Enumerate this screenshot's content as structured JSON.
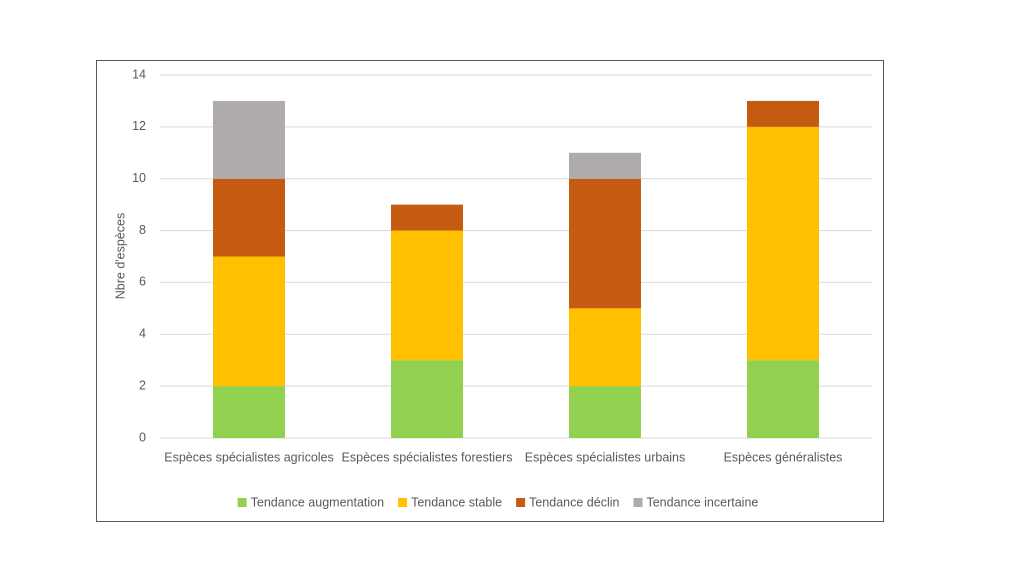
{
  "chart_data": {
    "type": "stacked_bar",
    "y_label": "Nbre d'espèces",
    "categories": [
      "Espèces spécialistes agricoles",
      "Espèces spécialistes forestiers",
      "Espèces spécialistes urbains",
      "Espèces généralistes"
    ],
    "series": [
      {
        "name": "Tendance augmentation",
        "color": "#92d050",
        "values": [
          2,
          3,
          2,
          3
        ]
      },
      {
        "name": "Tendance stable",
        "color": "#ffc000",
        "values": [
          5,
          5,
          3,
          9
        ]
      },
      {
        "name": "Tendance déclin",
        "color": "#c55a11",
        "values": [
          3,
          1,
          5,
          1
        ]
      },
      {
        "name": "Tendance incertaine",
        "color": "#afabab",
        "values": [
          3,
          0,
          1,
          0
        ]
      }
    ],
    "ylim": [
      0,
      14
    ],
    "yticks": [
      0,
      2,
      4,
      6,
      8,
      10,
      12,
      14
    ],
    "grid": true,
    "legend": "bottom"
  }
}
